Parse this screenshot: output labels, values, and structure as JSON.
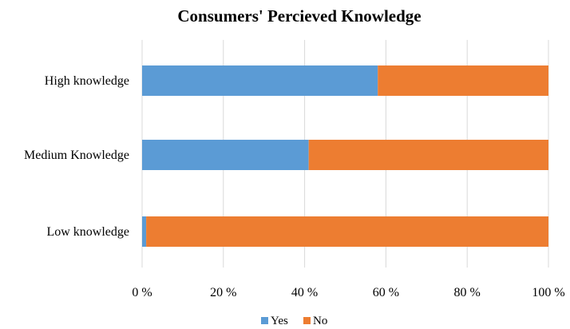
{
  "chart_data": {
    "type": "bar",
    "orientation": "horizontal",
    "stacked": "percent",
    "title": "Consumers' Percieved Knowledge",
    "categories": [
      "High knowledge",
      "Medium Knowledge",
      "Low knowledge"
    ],
    "series": [
      {
        "name": "Yes",
        "color": "#5b9bd5",
        "values": [
          58,
          41,
          1
        ]
      },
      {
        "name": "No",
        "color": "#ed7d31",
        "values": [
          42,
          59,
          99
        ]
      }
    ],
    "xlim": [
      0,
      100
    ],
    "xticks": [
      "0 %",
      "20 %",
      "40 %",
      "60 %",
      "80 %",
      "100 %"
    ],
    "grid": true,
    "legend_position": "bottom"
  }
}
